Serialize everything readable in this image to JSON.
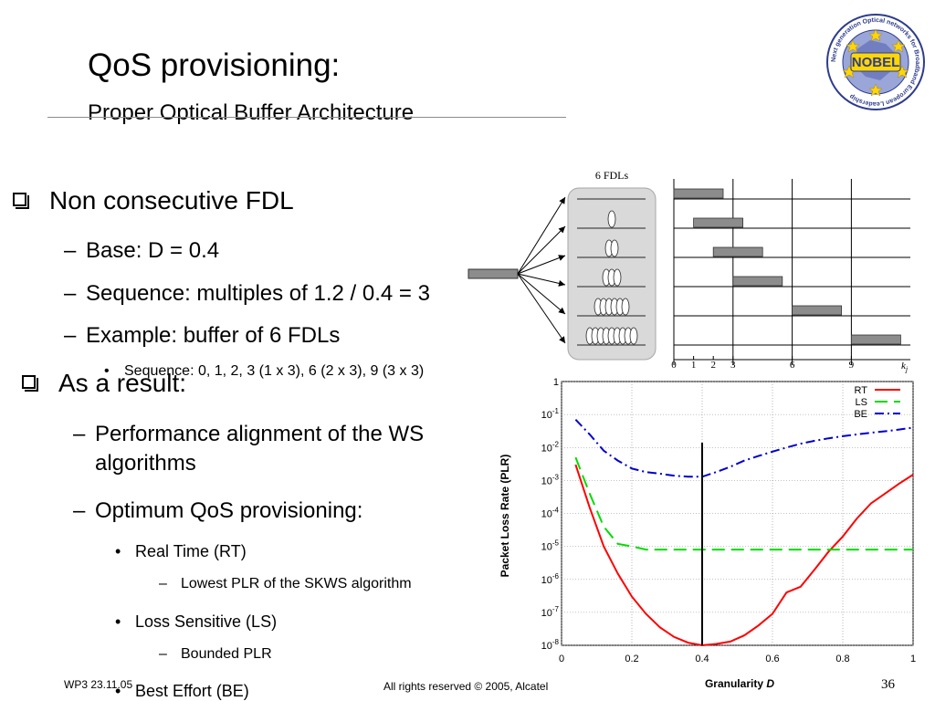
{
  "slide": {
    "title": "QoS provisioning:",
    "subtitle": "Proper Optical Buffer Architecture",
    "logo_text": "Next generation Optical networks for Broadband European Leadership",
    "logo_word": "NOBEL"
  },
  "bullets": {
    "b1": "Non consecutive FDL",
    "b1_1": "Base: D = 0.4",
    "b1_2": "Sequence: multiples of 1.2 / 0.4 = 3",
    "b1_3": "Example: buffer of 6 FDLs",
    "b1_3_1": "Sequence: 0, 1, 2, 3 (1 x 3), 6 (2 x 3), 9 (3 x 3)",
    "b2": "As a result:",
    "b2_1a": "Performance alignment of the WS",
    "b2_1b": "algorithms",
    "b2_2": "Optimum QoS provisioning:",
    "rt": "Real Time (RT)",
    "rt_sub": "Lowest PLR of the SKWS algorithm",
    "ls": "Loss Sensitive (LS)",
    "ls_sub": "Bounded PLR",
    "be": "Best Effort (BE)"
  },
  "footer": {
    "left": "WP3 23.11.05",
    "center": "All rights reserved © 2005, Alcatel",
    "page": "36"
  },
  "diagram": {
    "title": "6 FDLs",
    "fdl_counts": [
      1,
      2,
      3,
      6,
      9
    ],
    "delay_ticks": [
      "0",
      "1",
      "2",
      "3",
      "6",
      "9"
    ],
    "delay_units": [
      0,
      1,
      2,
      3,
      6,
      9
    ],
    "axis_label": "k",
    "axis_label_sub": "j",
    "colors": {
      "packet": "#8c8c8c",
      "box": "#d9d9d9"
    }
  },
  "chart_data": {
    "type": "line",
    "title": "",
    "xlabel": "Granularity",
    "xlabel_var": "D",
    "ylabel": "Packet Loss Rate (PLR)",
    "xlim": [
      0,
      1
    ],
    "ylim_log10": [
      -8,
      0
    ],
    "y_scale": "log",
    "x_ticks": [
      "0",
      "0.2",
      "0.4",
      "0.6",
      "0.8",
      "1"
    ],
    "y_ticks": [
      {
        "base": "1",
        "exp": ""
      },
      {
        "base": "10",
        "exp": "-1"
      },
      {
        "base": "10",
        "exp": "-2"
      },
      {
        "base": "10",
        "exp": "-3"
      },
      {
        "base": "10",
        "exp": "-4"
      },
      {
        "base": "10",
        "exp": "-5"
      },
      {
        "base": "10",
        "exp": "-6"
      },
      {
        "base": "10",
        "exp": "-7"
      },
      {
        "base": "10",
        "exp": "-8"
      }
    ],
    "grid": true,
    "legend_position": "top-right",
    "vertical_marker_x": 0.4,
    "series": [
      {
        "name": "RT",
        "color": "#ff0000",
        "dash": "",
        "points": [
          [
            0.04,
            0.003
          ],
          [
            0.08,
            0.00015
          ],
          [
            0.12,
            1e-05
          ],
          [
            0.16,
            1.5e-06
          ],
          [
            0.2,
            3e-07
          ],
          [
            0.24,
            9e-08
          ],
          [
            0.28,
            3.5e-08
          ],
          [
            0.32,
            1.8e-08
          ],
          [
            0.36,
            1.2e-08
          ],
          [
            0.4,
            1e-08
          ],
          [
            0.44,
            1.1e-08
          ],
          [
            0.48,
            1.3e-08
          ],
          [
            0.52,
            2e-08
          ],
          [
            0.56,
            4e-08
          ],
          [
            0.6,
            9e-08
          ],
          [
            0.64,
            4e-07
          ],
          [
            0.68,
            6e-07
          ],
          [
            0.72,
            2e-06
          ],
          [
            0.76,
            7e-06
          ],
          [
            0.8,
            2e-05
          ],
          [
            0.84,
            7e-05
          ],
          [
            0.88,
            0.0002
          ],
          [
            0.92,
            0.0004
          ],
          [
            0.96,
            0.0008
          ],
          [
            1.0,
            0.0015
          ]
        ]
      },
      {
        "name": "LS",
        "color": "#00dd00",
        "dash": "14,7",
        "points": [
          [
            0.04,
            0.005
          ],
          [
            0.08,
            0.0004
          ],
          [
            0.12,
            4e-05
          ],
          [
            0.16,
            1.2e-05
          ],
          [
            0.2,
            1e-05
          ],
          [
            0.24,
            8e-06
          ],
          [
            0.3,
            8e-06
          ],
          [
            0.4,
            8e-06
          ],
          [
            0.5,
            8e-06
          ],
          [
            0.6,
            8e-06
          ],
          [
            0.7,
            8e-06
          ],
          [
            0.8,
            8e-06
          ],
          [
            0.9,
            8e-06
          ],
          [
            1.0,
            8e-06
          ]
        ]
      },
      {
        "name": "BE",
        "color": "#0000cc",
        "dash": "10,4,2,4",
        "points": [
          [
            0.04,
            0.07
          ],
          [
            0.08,
            0.025
          ],
          [
            0.12,
            0.008
          ],
          [
            0.16,
            0.004
          ],
          [
            0.2,
            0.0023
          ],
          [
            0.24,
            0.0018
          ],
          [
            0.28,
            0.0016
          ],
          [
            0.32,
            0.0014
          ],
          [
            0.36,
            0.0013
          ],
          [
            0.4,
            0.0013
          ],
          [
            0.44,
            0.0018
          ],
          [
            0.48,
            0.0026
          ],
          [
            0.52,
            0.004
          ],
          [
            0.56,
            0.0055
          ],
          [
            0.6,
            0.0075
          ],
          [
            0.64,
            0.01
          ],
          [
            0.68,
            0.013
          ],
          [
            0.72,
            0.016
          ],
          [
            0.76,
            0.019
          ],
          [
            0.8,
            0.022
          ],
          [
            0.84,
            0.025
          ],
          [
            0.88,
            0.028
          ],
          [
            0.92,
            0.031
          ],
          [
            0.96,
            0.035
          ],
          [
            1.0,
            0.04
          ]
        ]
      }
    ]
  }
}
